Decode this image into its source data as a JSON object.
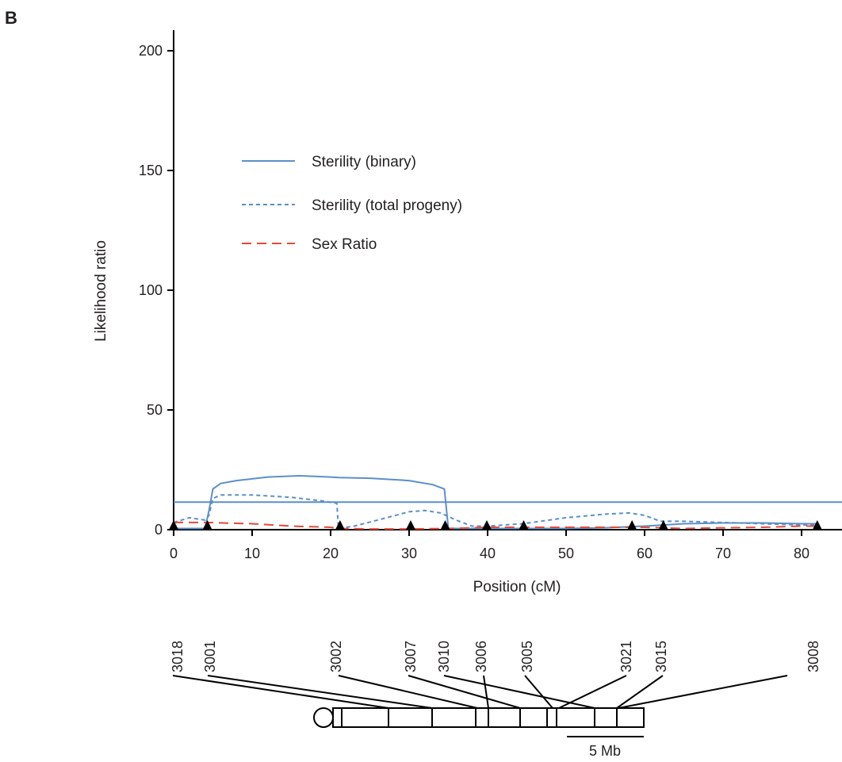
{
  "figure": {
    "panel_label": "B"
  },
  "chart_data": {
    "type": "line",
    "xlabel": "Position (cM)",
    "ylabel": "Likelihood ratio",
    "xlim": [
      0,
      85
    ],
    "ylim": [
      0,
      210
    ],
    "x_ticks": [
      0,
      10,
      20,
      30,
      40,
      50,
      60,
      70,
      80
    ],
    "y_ticks": [
      0,
      50,
      100,
      150,
      200
    ],
    "grid": false,
    "legend_position": "upper-left",
    "threshold": {
      "y": 11.5,
      "color": "#5b8fc9"
    },
    "series": [
      {
        "name": "Sterility (binary)",
        "style": "solid",
        "color": "#5b8fc9",
        "x": [
          0,
          2,
          4,
          4.5,
          5,
          6,
          8,
          12,
          16,
          20,
          21,
          25,
          30,
          33,
          34.5,
          35,
          38,
          40,
          45,
          50,
          55,
          60,
          65,
          70,
          75,
          80,
          82
        ],
        "y": [
          0.5,
          0.5,
          0.5,
          8,
          17,
          19.3,
          20.5,
          22,
          22.5,
          22,
          21.8,
          21.5,
          20.5,
          18.8,
          17,
          0.5,
          0.5,
          0.5,
          0.5,
          0.5,
          0.8,
          1.5,
          2.5,
          2.8,
          2.8,
          2.5,
          2.5
        ]
      },
      {
        "name": "Sterility (total progeny)",
        "style": "dashed",
        "color": "#5b8fc9",
        "x": [
          0,
          2,
          4,
          4.5,
          5,
          6,
          10,
          15,
          19,
          20.8,
          21,
          23,
          26,
          30,
          32,
          34,
          36,
          38,
          40,
          44.5,
          50,
          55,
          58,
          60,
          62,
          65,
          70,
          75,
          80,
          82
        ],
        "y": [
          3,
          5,
          4,
          6,
          13,
          14.5,
          14.5,
          13.5,
          12,
          11,
          0.5,
          1.5,
          4,
          7.5,
          8,
          7,
          4,
          1.5,
          1.5,
          2.5,
          5,
          6.5,
          7,
          6,
          3.5,
          3.5,
          3,
          2.5,
          2,
          2
        ]
      },
      {
        "name": "Sex Ratio",
        "style": "longdash",
        "color": "#e24a3b",
        "x": [
          0,
          2,
          4,
          10,
          15,
          20,
          21,
          25,
          30,
          35,
          40,
          45,
          50,
          55,
          60,
          65,
          70,
          75,
          80,
          82
        ],
        "y": [
          3,
          3,
          3,
          2.5,
          1.5,
          1,
          0.5,
          0.3,
          0.3,
          0.5,
          1,
          1,
          1,
          1,
          1,
          0.5,
          0.8,
          1,
          1.5,
          1.5
        ]
      }
    ],
    "markers": [
      {
        "id": "3018",
        "position": 0
      },
      {
        "id": "3001",
        "position": 4.3
      },
      {
        "id": "3002",
        "position": 21.2
      },
      {
        "id": "3007",
        "position": 30.2
      },
      {
        "id": "3010",
        "position": 34.6
      },
      {
        "id": "3006",
        "position": 39.9
      },
      {
        "id": "3005",
        "position": 44.6
      },
      {
        "id": "3021",
        "position": 58.4
      },
      {
        "id": "3015",
        "position": 62.4
      },
      {
        "id": "3008",
        "position": 82
      }
    ]
  },
  "physical_map": {
    "scale_bar_label": "5 Mb",
    "marker_order_on_chromosome": [
      "3018",
      "3001",
      "3002",
      "3007",
      "3010",
      "3006",
      "3021",
      "3005",
      "3015",
      "3008"
    ]
  }
}
